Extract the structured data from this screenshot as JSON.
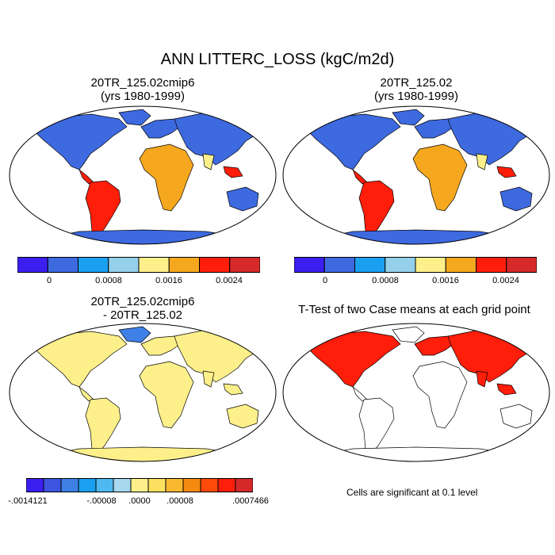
{
  "title": "ANN LITTERC_LOSS (kgC/m2d)",
  "panels": [
    {
      "id": "p1",
      "title_line1": "20TR_125.02cmip6",
      "title_line2": "(yrs 1980-1999)"
    },
    {
      "id": "p2",
      "title_line1": "20TR_125.02",
      "title_line2": "(yrs 1980-1999)"
    },
    {
      "id": "p3",
      "title_line1": "20TR_125.02cmip6",
      "title_line2": "- 20TR_125.02"
    },
    {
      "id": "p4",
      "title_line1": "T-Test of two Case means at each grid point",
      "title_line2": ""
    }
  ],
  "colorbar_top": {
    "colors": [
      "#3a1ff0",
      "#3e6ae0",
      "#1aa0f0",
      "#94d0ea",
      "#fdf08a",
      "#f5a81e",
      "#ff1e0a",
      "#d62a2a"
    ],
    "labels": [
      "0",
      "0.0008",
      "0.0016",
      "0.0024"
    ]
  },
  "colorbar_diff": {
    "colors": [
      "#3a1ff0",
      "#3e55e0",
      "#3e80e6",
      "#1aa0f0",
      "#50b8f0",
      "#a8d8ee",
      "#fdf08a",
      "#fde060",
      "#f8b830",
      "#f58a10",
      "#ff4a0a",
      "#ff1e0a",
      "#d62a2a"
    ],
    "labels": [
      "-.0014121",
      "-.00008",
      ".0000",
      ".00008",
      ".0007466"
    ]
  },
  "significance_note": "Cells are significant at 0.1 level",
  "colors": {
    "ocean": "#ffffff",
    "land_low": "#3e6ae0",
    "land_mid": "#fdf08a",
    "land_high": "#ff1e0a",
    "significant": "#ff1e0a"
  }
}
